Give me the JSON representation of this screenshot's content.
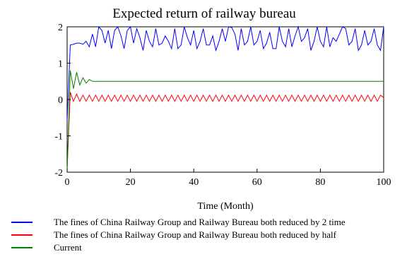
{
  "chart_data": {
    "type": "line",
    "title": "Expected return of railway bureau",
    "xlabel": "Time (Month)",
    "ylabel": "",
    "xlim": [
      0,
      100
    ],
    "ylim": [
      -2,
      2
    ],
    "xticks": [
      "0",
      "20",
      "40",
      "60",
      "80",
      "100"
    ],
    "yticks": [
      "-2",
      "-1",
      "0",
      "1",
      "2"
    ],
    "grid": false,
    "legend_position": "bottom",
    "series": [
      {
        "name": "The fines of China Railway Group and Railway Bureau both reduced by 2 time",
        "color": "#0000ff",
        "x": [
          0,
          1,
          2,
          3,
          4,
          5,
          6,
          7,
          8,
          9,
          10,
          11,
          12,
          13,
          14,
          15,
          16,
          17,
          18,
          19,
          20,
          21,
          22,
          23,
          24,
          25,
          26,
          27,
          28,
          29,
          30,
          31,
          32,
          33,
          34,
          35,
          36,
          37,
          38,
          39,
          40,
          41,
          42,
          43,
          44,
          45,
          46,
          47,
          48,
          49,
          50,
          51,
          52,
          53,
          54,
          55,
          56,
          57,
          58,
          59,
          60,
          61,
          62,
          63,
          64,
          65,
          66,
          67,
          68,
          69,
          70,
          71,
          72,
          73,
          74,
          75,
          76,
          77,
          78,
          79,
          80,
          81,
          82,
          83,
          84,
          85,
          86,
          87,
          88,
          89,
          90,
          91,
          92,
          93,
          94,
          95,
          96,
          97,
          98,
          99,
          100
        ],
        "values": [
          -0.6,
          1.5,
          1.52,
          1.55,
          1.55,
          1.52,
          1.6,
          1.45,
          1.8,
          1.45,
          2.0,
          1.9,
          1.55,
          1.9,
          1.4,
          1.9,
          2.0,
          1.75,
          1.4,
          1.9,
          2.0,
          1.55,
          1.95,
          1.7,
          1.35,
          1.9,
          1.6,
          1.45,
          1.95,
          1.5,
          1.55,
          1.75,
          1.6,
          1.4,
          1.95,
          1.4,
          1.5,
          2.0,
          1.7,
          1.5,
          1.9,
          1.4,
          1.6,
          1.95,
          1.5,
          1.5,
          1.75,
          1.35,
          1.6,
          1.95,
          1.6,
          2.0,
          1.98,
          1.8,
          1.35,
          1.95,
          1.5,
          1.6,
          2.0,
          1.5,
          1.6,
          1.9,
          1.4,
          1.55,
          1.85,
          1.4,
          1.4,
          2.0,
          1.6,
          1.45,
          1.95,
          1.45,
          1.75,
          2.0,
          1.6,
          1.7,
          1.95,
          1.35,
          1.6,
          2.0,
          1.6,
          1.45,
          2.0,
          1.45,
          1.7,
          1.6,
          1.8,
          2.0,
          1.95,
          1.5,
          1.6,
          1.95,
          1.35,
          1.5,
          1.9,
          1.5,
          1.6,
          1.95,
          1.5,
          1.35,
          2.0
        ]
      },
      {
        "name": "The fines of China Railway Group and Railway Bureau both reduced by half",
        "color": "#ff0000",
        "x": [
          0,
          1,
          2,
          3,
          4,
          5,
          6,
          7,
          8,
          9,
          10,
          11,
          12,
          13,
          14,
          15,
          16,
          17,
          18,
          19,
          20,
          21,
          22,
          23,
          24,
          25,
          26,
          27,
          28,
          29,
          30,
          31,
          32,
          33,
          34,
          35,
          36,
          37,
          38,
          39,
          40,
          41,
          42,
          43,
          44,
          45,
          46,
          47,
          48,
          49,
          50,
          51,
          52,
          53,
          54,
          55,
          56,
          57,
          58,
          59,
          60,
          61,
          62,
          63,
          64,
          65,
          66,
          67,
          68,
          69,
          70,
          71,
          72,
          73,
          74,
          75,
          76,
          77,
          78,
          79,
          80,
          81,
          82,
          83,
          84,
          85,
          86,
          87,
          88,
          89,
          90,
          91,
          92,
          93,
          94,
          95,
          96,
          97,
          98,
          99,
          100
        ],
        "values": [
          -1.9,
          0.2,
          -0.05,
          0.15,
          -0.05,
          0.12,
          -0.05,
          0.12,
          -0.05,
          0.12,
          -0.05,
          0.12,
          -0.05,
          0.12,
          -0.05,
          0.12,
          -0.05,
          0.12,
          -0.05,
          0.12,
          -0.05,
          0.12,
          -0.05,
          0.12,
          -0.05,
          0.12,
          -0.05,
          0.12,
          -0.05,
          0.12,
          -0.05,
          0.12,
          -0.05,
          0.12,
          -0.05,
          0.12,
          -0.05,
          0.12,
          -0.05,
          0.12,
          -0.05,
          0.12,
          -0.05,
          0.12,
          -0.05,
          0.12,
          -0.05,
          0.12,
          -0.05,
          0.12,
          -0.05,
          0.12,
          -0.05,
          0.12,
          -0.05,
          0.12,
          -0.05,
          0.12,
          -0.05,
          0.12,
          -0.05,
          0.12,
          -0.05,
          0.12,
          -0.05,
          0.12,
          -0.05,
          0.12,
          -0.05,
          0.12,
          -0.05,
          0.12,
          -0.05,
          0.12,
          -0.05,
          0.12,
          -0.05,
          0.12,
          -0.05,
          0.12,
          -0.05,
          0.12,
          -0.05,
          0.12,
          -0.05,
          0.12,
          -0.05,
          0.12,
          -0.05,
          0.12,
          -0.05,
          0.12,
          -0.05,
          0.12,
          -0.05,
          0.12,
          -0.05,
          0.12,
          -0.05,
          0.12,
          0.05
        ]
      },
      {
        "name": "Current",
        "color": "#008000",
        "x": [
          0,
          1,
          2,
          3,
          4,
          5,
          6,
          7,
          8,
          9,
          10,
          15,
          20,
          30,
          40,
          50,
          60,
          70,
          80,
          90,
          100
        ],
        "values": [
          -2.0,
          0.8,
          0.3,
          0.75,
          0.4,
          0.6,
          0.45,
          0.55,
          0.5,
          0.5,
          0.5,
          0.5,
          0.5,
          0.5,
          0.5,
          0.5,
          0.5,
          0.5,
          0.5,
          0.5,
          0.5
        ]
      }
    ]
  }
}
